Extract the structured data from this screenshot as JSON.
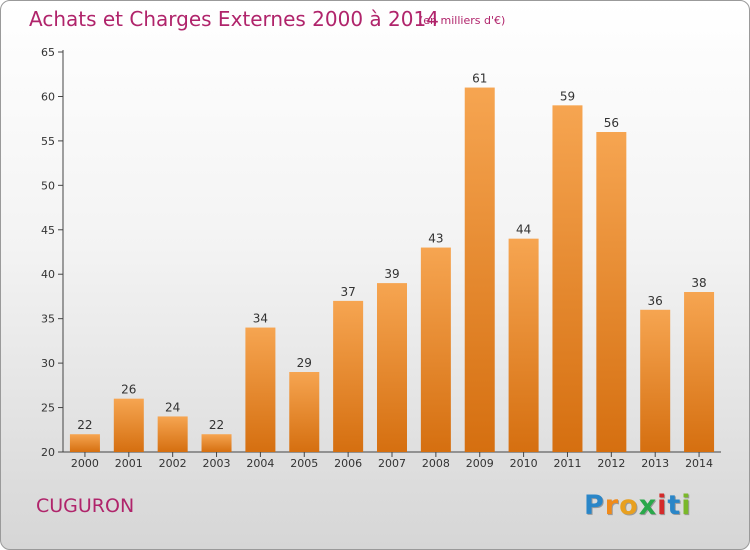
{
  "header": {
    "title": "Achats et Charges Externes 2000 à 2014",
    "unit": "(en milliers d'€)"
  },
  "commune": "CUGURON",
  "logo": {
    "letters": [
      "P",
      "r",
      "o",
      "x",
      "i",
      "t",
      "i"
    ],
    "colors": [
      "#2a86c8",
      "#f08a1a",
      "#e8a020",
      "#2aa84a",
      "#d42a2a",
      "#2a86c8",
      "#7ab82a"
    ]
  },
  "colors": {
    "bar_top": "#f6a551",
    "bar_bottom": "#d56f10",
    "title": "#b0246b"
  },
  "chart_data": {
    "type": "bar",
    "title": "Achats et Charges Externes 2000 à 2014",
    "subtitle": "(en milliers d'€)",
    "categories": [
      "2000",
      "2001",
      "2002",
      "2003",
      "2004",
      "2005",
      "2006",
      "2007",
      "2008",
      "2009",
      "2010",
      "2011",
      "2012",
      "2013",
      "2014"
    ],
    "values": [
      22,
      26,
      24,
      22,
      34,
      29,
      37,
      39,
      43,
      61,
      44,
      59,
      56,
      36,
      38
    ],
    "ylim": [
      20,
      65
    ],
    "yticks": [
      20,
      25,
      30,
      35,
      40,
      45,
      50,
      55,
      60,
      65
    ],
    "grid": false,
    "data_labels": true
  }
}
